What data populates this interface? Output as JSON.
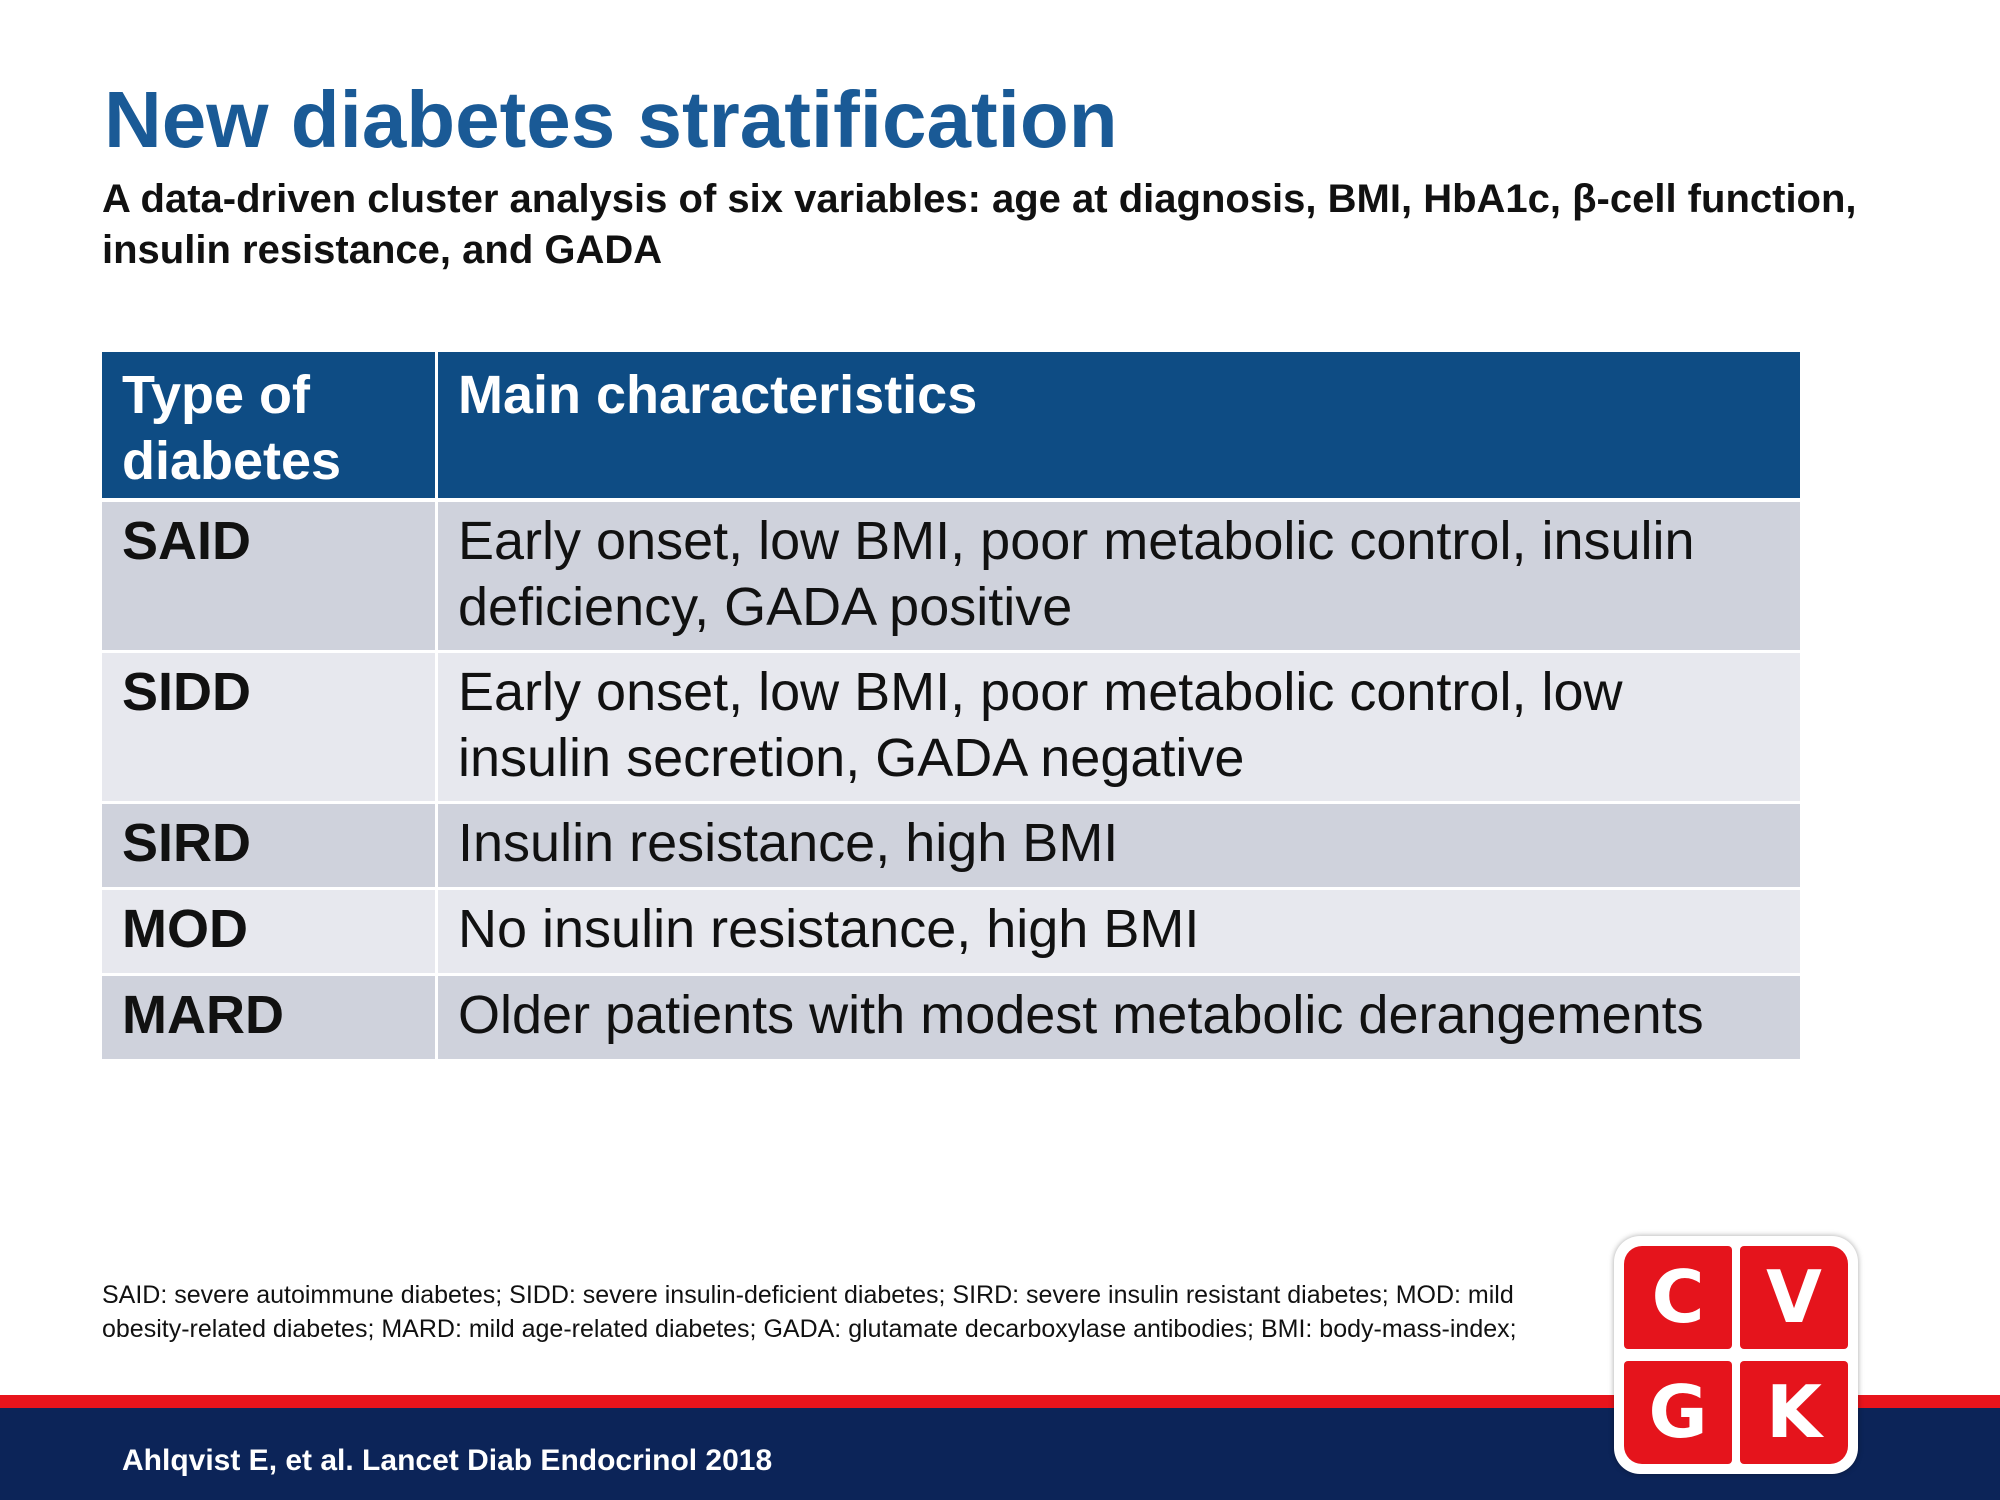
{
  "slide": {
    "title": "New diabetes stratification",
    "subtitle": "A data-driven cluster analysis of six variables: age at diagnosis, BMI, HbA1c, β-cell function, insulin resistance, and GADA"
  },
  "table": {
    "headers": {
      "type": "Type of diabetes",
      "characteristics": "Main characteristics"
    },
    "rows": [
      {
        "type": "SAID",
        "characteristics": "Early onset, low BMI, poor metabolic control, insulin deficiency, GADA positive"
      },
      {
        "type": "SIDD",
        "characteristics": "Early onset, low BMI, poor metabolic control, low insulin secretion, GADA negative"
      },
      {
        "type": "SIRD",
        "characteristics": "Insulin resistance, high BMI"
      },
      {
        "type": "MOD",
        "characteristics": "No insulin resistance, high BMI"
      },
      {
        "type": "MARD",
        "characteristics": "Older patients with modest metabolic derangements"
      }
    ]
  },
  "footnote": "SAID: severe autoimmune diabetes; SIDD: severe insulin-deficient diabetes; SIRD: severe insulin resistant diabetes; MOD: mild obesity-related diabetes; MARD: mild age-related diabetes; GADA: glutamate decarboxylase antibodies; BMI: body-mass-index;",
  "footer": {
    "citation": "Ahlqvist E, et al. Lancet Diab Endocrinol 2018"
  },
  "logo": {
    "letters": [
      "C",
      "V",
      "G",
      "K"
    ]
  },
  "colors": {
    "title": "#1a5a96",
    "header_bg": "#0e4c84",
    "row_dark": "#cfd2dc",
    "row_light": "#e7e8ee",
    "footer_bg": "#0c2458",
    "accent_red": "#e8141c"
  }
}
